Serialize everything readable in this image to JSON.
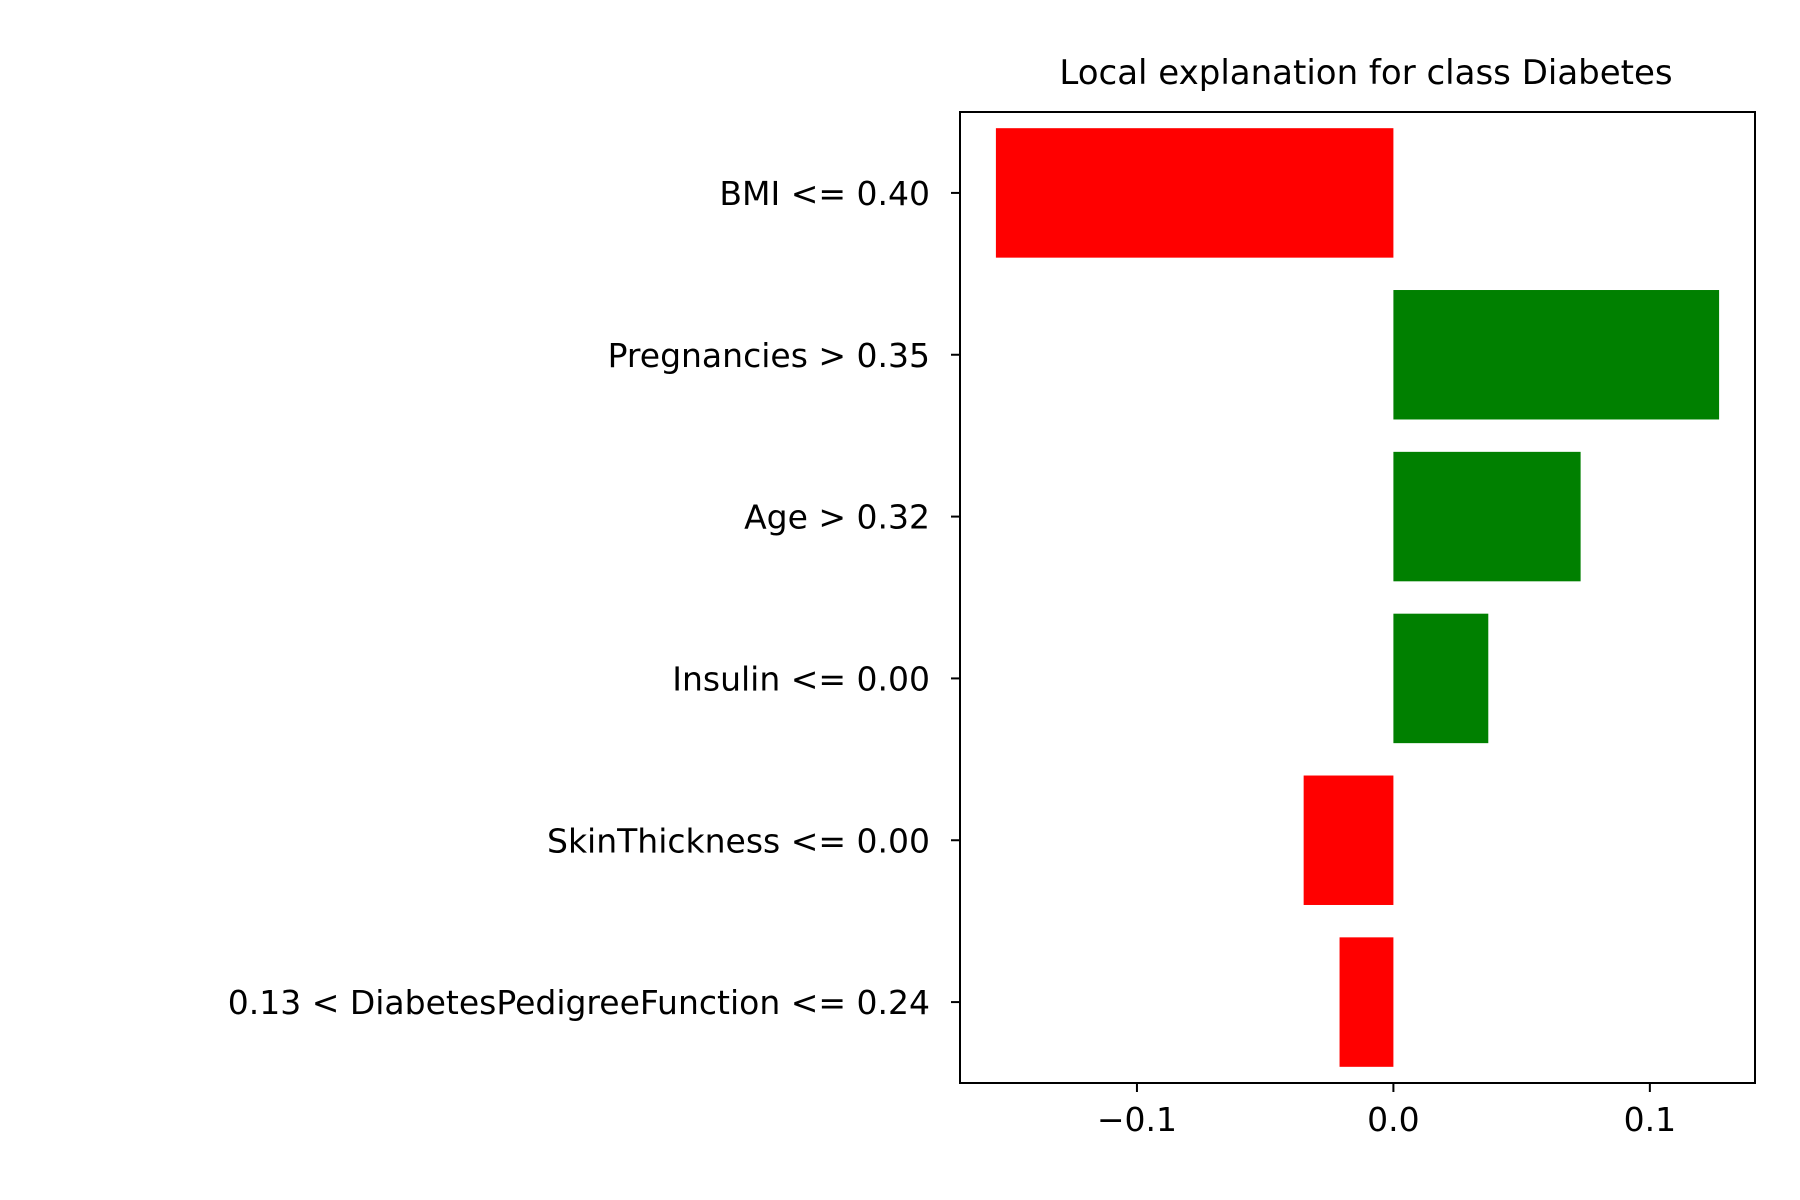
{
  "chart_data": {
    "type": "bar",
    "orientation": "horizontal",
    "title": "Local explanation for class Diabetes",
    "xlabel": "",
    "ylabel": "",
    "categories": [
      "BMI <= 0.40",
      "Pregnancies > 0.35",
      "Age > 0.32",
      "Insulin <= 0.00",
      "SkinThickness <= 0.00",
      "0.13 < DiabetesPedigreeFunction <= 0.24"
    ],
    "values": [
      -0.155,
      0.127,
      0.073,
      0.037,
      -0.035,
      -0.021
    ],
    "xlim": [
      -0.169,
      0.141
    ],
    "xticks": [
      -0.1,
      0.0,
      0.1
    ],
    "xtick_labels": [
      "−0.1",
      "0.0",
      "0.1"
    ],
    "positive_color": "#008000",
    "negative_color": "#ff0000",
    "grid": false,
    "legend": "none"
  }
}
